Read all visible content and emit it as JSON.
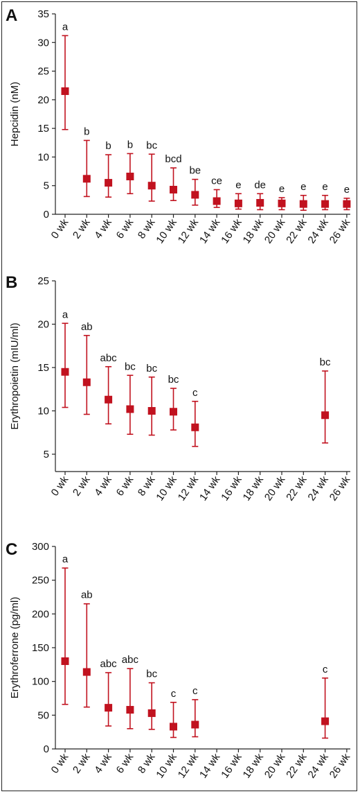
{
  "chart_data": [
    {
      "panel": "A",
      "type": "scatter",
      "ylabel": "Hepcidin (nM)",
      "ylim": [
        0,
        35
      ],
      "yticks": [
        0,
        5,
        10,
        15,
        20,
        25,
        30,
        35
      ],
      "categories": [
        "0 wk",
        "2 wk",
        "4 wk",
        "6 wk",
        "8 wk",
        "10 wk",
        "12 wk",
        "14 wk",
        "16 wk",
        "18 wk",
        "20 wk",
        "22 wk",
        "24 wk",
        "26 wk"
      ],
      "values": [
        21.5,
        6.2,
        5.5,
        6.6,
        5.0,
        4.3,
        3.4,
        2.3,
        1.9,
        2.0,
        1.9,
        1.8,
        1.8,
        1.8
      ],
      "err_low": [
        14.8,
        3.1,
        3.0,
        3.6,
        2.3,
        2.4,
        1.6,
        1.2,
        0.9,
        0.8,
        0.8,
        0.7,
        0.8,
        0.8
      ],
      "err_high": [
        31.2,
        12.9,
        10.4,
        10.6,
        10.5,
        8.1,
        6.1,
        4.3,
        3.6,
        3.6,
        2.9,
        3.3,
        3.3,
        2.8
      ],
      "sig_labels": [
        "a",
        "b",
        "b",
        "b",
        "bc",
        "bcd",
        "be",
        "ce",
        "e",
        "de",
        "e",
        "e",
        "e",
        "e"
      ],
      "color": "#c1121f"
    },
    {
      "panel": "B",
      "type": "scatter",
      "ylabel": "Erythropoietin (mIU/ml)",
      "ylim": [
        3,
        25
      ],
      "yticks": [
        5,
        10,
        15,
        20,
        25
      ],
      "categories": [
        "0 wk",
        "2 wk",
        "4 wk",
        "6 wk",
        "8 wk",
        "10 wk",
        "12 wk",
        "14 wk",
        "16 wk",
        "18 wk",
        "20 wk",
        "22 wk",
        "24 wk",
        "26 wk"
      ],
      "values": [
        14.5,
        13.3,
        11.3,
        10.2,
        10.0,
        9.9,
        8.1,
        null,
        null,
        null,
        null,
        null,
        9.5,
        null
      ],
      "err_low": [
        10.4,
        9.6,
        8.5,
        7.3,
        7.2,
        7.8,
        5.9,
        null,
        null,
        null,
        null,
        null,
        6.3,
        null
      ],
      "err_high": [
        20.1,
        18.7,
        15.1,
        14.1,
        13.9,
        12.6,
        11.1,
        null,
        null,
        null,
        null,
        null,
        14.6,
        null
      ],
      "sig_labels": [
        "a",
        "ab",
        "abc",
        "bc",
        "bc",
        "bc",
        "c",
        "",
        "",
        "",
        "",
        "",
        "bc",
        ""
      ],
      "color": "#c1121f"
    },
    {
      "panel": "C",
      "type": "scatter",
      "ylabel": "Erythroferrone (pg/ml)",
      "ylim": [
        0,
        300
      ],
      "yticks": [
        0,
        50,
        100,
        150,
        200,
        250,
        300
      ],
      "categories": [
        "0 wk",
        "2 wk",
        "4 wk",
        "6 wk",
        "8 wk",
        "10 wk",
        "12 wk",
        "14 wk",
        "16 wk",
        "18 wk",
        "20 wk",
        "22 wk",
        "24 wk",
        "26 wk"
      ],
      "values": [
        130,
        114,
        61,
        58,
        53,
        33,
        36,
        null,
        null,
        null,
        null,
        null,
        41,
        null
      ],
      "err_low": [
        66,
        62,
        34,
        30,
        29,
        17,
        18,
        null,
        null,
        null,
        null,
        null,
        16,
        null
      ],
      "err_high": [
        268,
        215,
        113,
        119,
        98,
        69,
        73,
        null,
        null,
        null,
        null,
        null,
        105,
        null
      ],
      "sig_labels": [
        "a",
        "ab",
        "abc",
        "abc",
        "bc",
        "c",
        "c",
        "",
        "",
        "",
        "",
        "",
        "c",
        ""
      ],
      "color": "#c1121f"
    }
  ]
}
